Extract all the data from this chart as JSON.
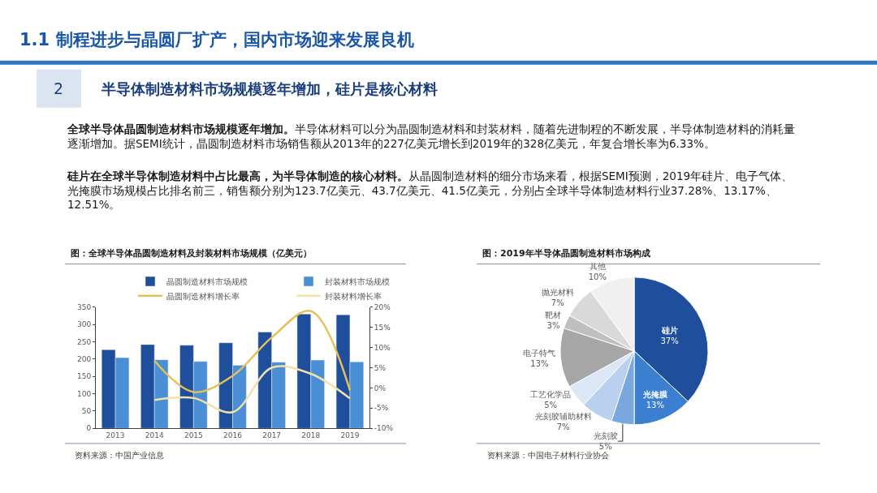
{
  "chart_data": [
    {
      "type": "bar",
      "title": "图：全球半导体晶圆制造材料及封装材料市场规模（亿美元）",
      "annotations": [
        "1.1 制程进步与晶圆厂扩产，国内市场迎来发展良机",
        "2",
        "半导体制造材料市场规模逐年增加，硅片是核心材料",
        "全球半导体晶圆制造材料市场规模逐年增加。半导体材料可以分为晶圆制造材料和封装材料，随着先进制程的不断发展，半导体制造材料的消耗量逐渐增加。据SEMI统计，晶圆制造材料市场销售额从2013年的227亿美元增长到2019年的328亿美元，年复合增长率为6.33%。",
        "硅片在全球半导体制造材料中占比最高，为半导体制造的核心材料。从晶圆制造材料的细分市场来看，根据SEMI预测，2019年硅片、电子气体、光掩膜市场规模占比排名前三，销售额分别为123.7亿美元、43.7亿美元、41.5亿美元，分别占全球半导体制造材料行业37.28%、13.17%、12.51%。",
        "资料来源：中国产业信息"
      ],
      "categories": [
        "2013",
        "2014",
        "2015",
        "2016",
        "2017",
        "2018",
        "2019"
      ],
      "series": [
        {
          "name": "晶圆制造材料市场规模",
          "color": "#1f4e9c",
          "values": [
            227,
            242,
            240,
            247,
            278,
            330,
            328
          ]
        },
        {
          "name": "封装材料市场规模",
          "color": "#4a8fd6",
          "values": [
            204,
            198,
            193,
            182,
            191,
            197,
            192
          ]
        },
        {
          "name": "晶圆制造材料增长率",
          "type": "line",
          "axis": "y2",
          "color": "#e6bf55",
          "values": [
            null,
            6.7,
            -1,
            3,
            12.5,
            19,
            -0.6
          ]
        },
        {
          "name": "封装材料增长率",
          "type": "line",
          "axis": "y2",
          "color": "#f3e2a8",
          "values": [
            null,
            -3,
            -2.5,
            -6,
            5,
            3.5,
            -2.6
          ]
        }
      ],
      "ylim": [
        0,
        350
      ],
      "yticks": [
        0,
        50,
        100,
        150,
        200,
        250,
        300,
        350
      ],
      "y2lim": [
        -10,
        20
      ],
      "y2ticks": [
        {
          "value": -10,
          "label": "-10%"
        },
        {
          "value": -5,
          "label": "-5%"
        },
        {
          "value": 0,
          "label": "0%"
        },
        {
          "value": 5,
          "label": "5%"
        },
        {
          "value": 10,
          "label": "10%"
        },
        {
          "value": 15,
          "label": "15%"
        },
        {
          "value": 20,
          "label": "20%"
        }
      ],
      "legend": "top",
      "marker": "none",
      "line_style": "solid"
    },
    {
      "type": "pie",
      "title": "图：2019年半导体晶圆制造材料市场构成",
      "annotations": [
        "资料来源：中国电子材料行业协会"
      ],
      "categories": [
        "硅片",
        "光掩膜",
        "光刻胶",
        "光刻胶辅助材料",
        "工艺化学品",
        "电子特气",
        "靶材",
        "抛光材料",
        "其他"
      ],
      "values": [
        37,
        13,
        5,
        7,
        5,
        13,
        3,
        7,
        10
      ],
      "value_labels": [
        "37%",
        "13%",
        "5%",
        "7%",
        "5%",
        "13%",
        "3%",
        "7%",
        "10%"
      ],
      "colors": [
        "#1f4e9c",
        "#3a7fd0",
        "#7aa8de",
        "#b9d0ee",
        "#dce7f5",
        "#a6a6a6",
        "#bfbfbf",
        "#d9d9d9",
        "#f0f0f0"
      ],
      "legend": false
    }
  ]
}
